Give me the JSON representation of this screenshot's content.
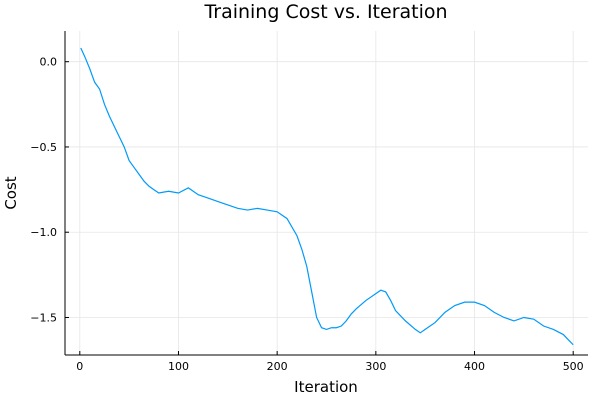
{
  "chart_data": {
    "type": "line",
    "title": "Training Cost vs. Iteration",
    "xlabel": "Iteration",
    "ylabel": "Cost",
    "xlim": [
      -15,
      515
    ],
    "ylim": [
      -1.72,
      0.18
    ],
    "xticks": [
      0,
      100,
      200,
      300,
      400,
      500
    ],
    "xtick_labels": [
      "0",
      "100",
      "200",
      "300",
      "400",
      "500"
    ],
    "yticks": [
      0.0,
      -0.5,
      -1.0,
      -1.5
    ],
    "ytick_labels": [
      "0.0",
      "−0.5",
      "−1.0",
      "−1.5"
    ],
    "grid": true,
    "legend": "none",
    "series": [
      {
        "color": "#009AFA",
        "x": [
          1,
          5,
          10,
          15,
          20,
          25,
          30,
          35,
          40,
          45,
          50,
          55,
          60,
          65,
          70,
          75,
          80,
          90,
          100,
          110,
          120,
          130,
          140,
          150,
          160,
          170,
          180,
          190,
          200,
          210,
          220,
          225,
          230,
          235,
          240,
          245,
          250,
          255,
          260,
          265,
          270,
          275,
          280,
          290,
          300,
          305,
          310,
          315,
          320,
          330,
          340,
          345,
          350,
          360,
          370,
          380,
          390,
          400,
          410,
          420,
          430,
          440,
          450,
          460,
          470,
          480,
          490,
          495,
          500
        ],
        "y": [
          0.08,
          0.03,
          -0.04,
          -0.12,
          -0.16,
          -0.25,
          -0.32,
          -0.38,
          -0.44,
          -0.5,
          -0.58,
          -0.62,
          -0.66,
          -0.7,
          -0.73,
          -0.75,
          -0.77,
          -0.76,
          -0.77,
          -0.74,
          -0.78,
          -0.8,
          -0.82,
          -0.84,
          -0.86,
          -0.87,
          -0.86,
          -0.87,
          -0.88,
          -0.92,
          -1.02,
          -1.1,
          -1.2,
          -1.35,
          -1.5,
          -1.56,
          -1.57,
          -1.56,
          -1.56,
          -1.55,
          -1.52,
          -1.48,
          -1.45,
          -1.4,
          -1.36,
          -1.34,
          -1.35,
          -1.4,
          -1.46,
          -1.52,
          -1.57,
          -1.59,
          -1.57,
          -1.53,
          -1.47,
          -1.43,
          -1.41,
          -1.41,
          -1.43,
          -1.47,
          -1.5,
          -1.52,
          -1.5,
          -1.51,
          -1.55,
          -1.57,
          -1.6,
          -1.63,
          -1.66
        ]
      }
    ]
  }
}
